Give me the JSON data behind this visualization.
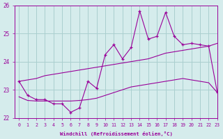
{
  "xlabel": "Windchill (Refroidissement éolien,°C)",
  "xlim": [
    -0.5,
    23
  ],
  "ylim": [
    22,
    26
  ],
  "yticks": [
    22,
    23,
    24,
    25,
    26
  ],
  "xticks": [
    0,
    1,
    2,
    3,
    4,
    5,
    6,
    7,
    8,
    9,
    10,
    11,
    12,
    13,
    14,
    15,
    16,
    17,
    18,
    19,
    20,
    21,
    22,
    23
  ],
  "background_color": "#d5ecec",
  "grid_color": "#aacfcf",
  "line_color": "#990099",
  "series1_x": [
    0,
    1,
    2,
    3,
    4,
    5,
    6,
    7,
    8,
    9,
    10,
    11,
    12,
    13,
    14,
    15,
    16,
    17,
    18,
    19,
    20,
    21,
    22,
    23
  ],
  "series1_y": [
    23.3,
    23.35,
    23.4,
    23.5,
    23.55,
    23.6,
    23.65,
    23.7,
    23.75,
    23.8,
    23.85,
    23.9,
    23.95,
    24.0,
    24.05,
    24.1,
    24.2,
    24.3,
    24.35,
    24.4,
    24.45,
    24.5,
    24.55,
    24.65
  ],
  "series2_x": [
    0,
    1,
    2,
    3,
    4,
    5,
    6,
    7,
    8,
    9,
    10,
    11,
    12,
    13,
    14,
    15,
    16,
    17,
    18,
    19,
    20,
    21,
    22,
    23
  ],
  "series2_y": [
    22.75,
    22.62,
    22.6,
    22.6,
    22.6,
    22.6,
    22.6,
    22.62,
    22.65,
    22.7,
    22.8,
    22.9,
    23.0,
    23.1,
    23.15,
    23.2,
    23.25,
    23.3,
    23.35,
    23.4,
    23.35,
    23.3,
    23.25,
    22.9
  ],
  "series3_x": [
    0,
    1,
    2,
    3,
    4,
    5,
    6,
    7,
    8,
    9,
    10,
    11,
    12,
    13,
    14,
    15,
    16,
    17,
    18,
    19,
    20,
    21,
    22,
    23
  ],
  "series3_y": [
    23.3,
    22.8,
    22.65,
    22.65,
    22.5,
    22.5,
    22.2,
    22.35,
    23.3,
    23.05,
    24.25,
    24.6,
    24.1,
    24.5,
    25.8,
    24.8,
    24.9,
    25.75,
    24.9,
    24.6,
    24.65,
    24.6,
    24.55,
    22.9
  ]
}
